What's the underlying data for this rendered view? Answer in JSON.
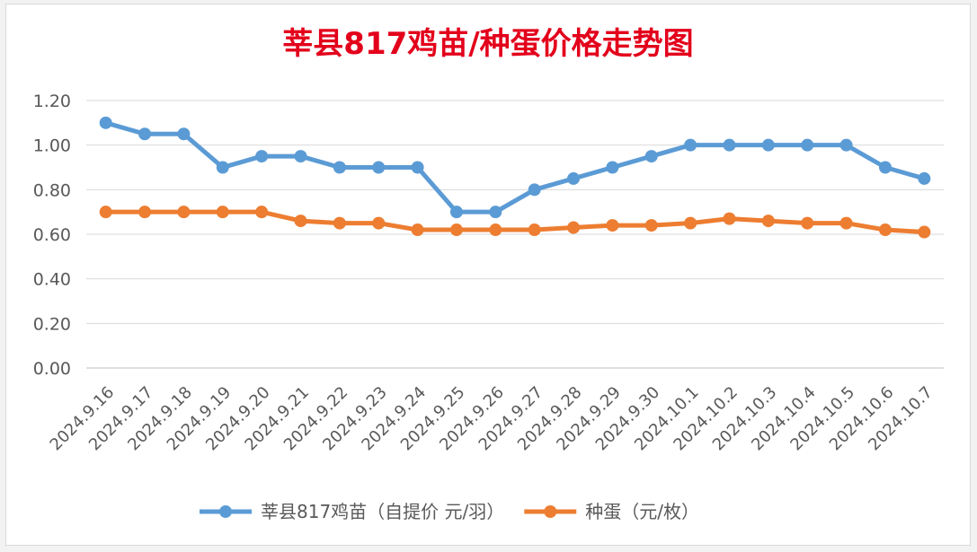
{
  "chart_data": {
    "type": "line",
    "title": "莘县817鸡苗/种蛋价格走势图",
    "title_color": "#e3001b",
    "categories": [
      "2024.9.16",
      "2024.9.17",
      "2024.9.18",
      "2024.9.19",
      "2024.9.20",
      "2024.9.21",
      "2024.9.22",
      "2024.9.23",
      "2024.9.24",
      "2024.9.25",
      "2024.9.26",
      "2024.9.27",
      "2024.9.28",
      "2024.9.29",
      "2024.9.30",
      "2024.10.1",
      "2024.10.2",
      "2024.10.3",
      "2024.10.4",
      "2024.10.5",
      "2024.10.6",
      "2024.10.7"
    ],
    "series": [
      {
        "name": "莘县817鸡苗（自提价 元/羽）",
        "color": "#5b9bd5",
        "values": [
          1.1,
          1.05,
          1.05,
          0.9,
          0.95,
          0.95,
          0.9,
          0.9,
          0.9,
          0.7,
          0.7,
          0.8,
          0.85,
          0.9,
          0.95,
          1.0,
          1.0,
          1.0,
          1.0,
          1.0,
          0.9,
          0.85
        ]
      },
      {
        "name": "种蛋（元/枚）",
        "color": "#ed7d31",
        "values": [
          0.7,
          0.7,
          0.7,
          0.7,
          0.7,
          0.66,
          0.65,
          0.65,
          0.62,
          0.62,
          0.62,
          0.62,
          0.63,
          0.64,
          0.64,
          0.65,
          0.67,
          0.66,
          0.65,
          0.65,
          0.62,
          0.61
        ]
      }
    ],
    "y_ticks": [
      "0.00",
      "0.20",
      "0.40",
      "0.60",
      "0.80",
      "1.00",
      "1.20"
    ],
    "ylim": [
      0,
      1.2
    ],
    "grid": true,
    "legend_position": "bottom"
  }
}
